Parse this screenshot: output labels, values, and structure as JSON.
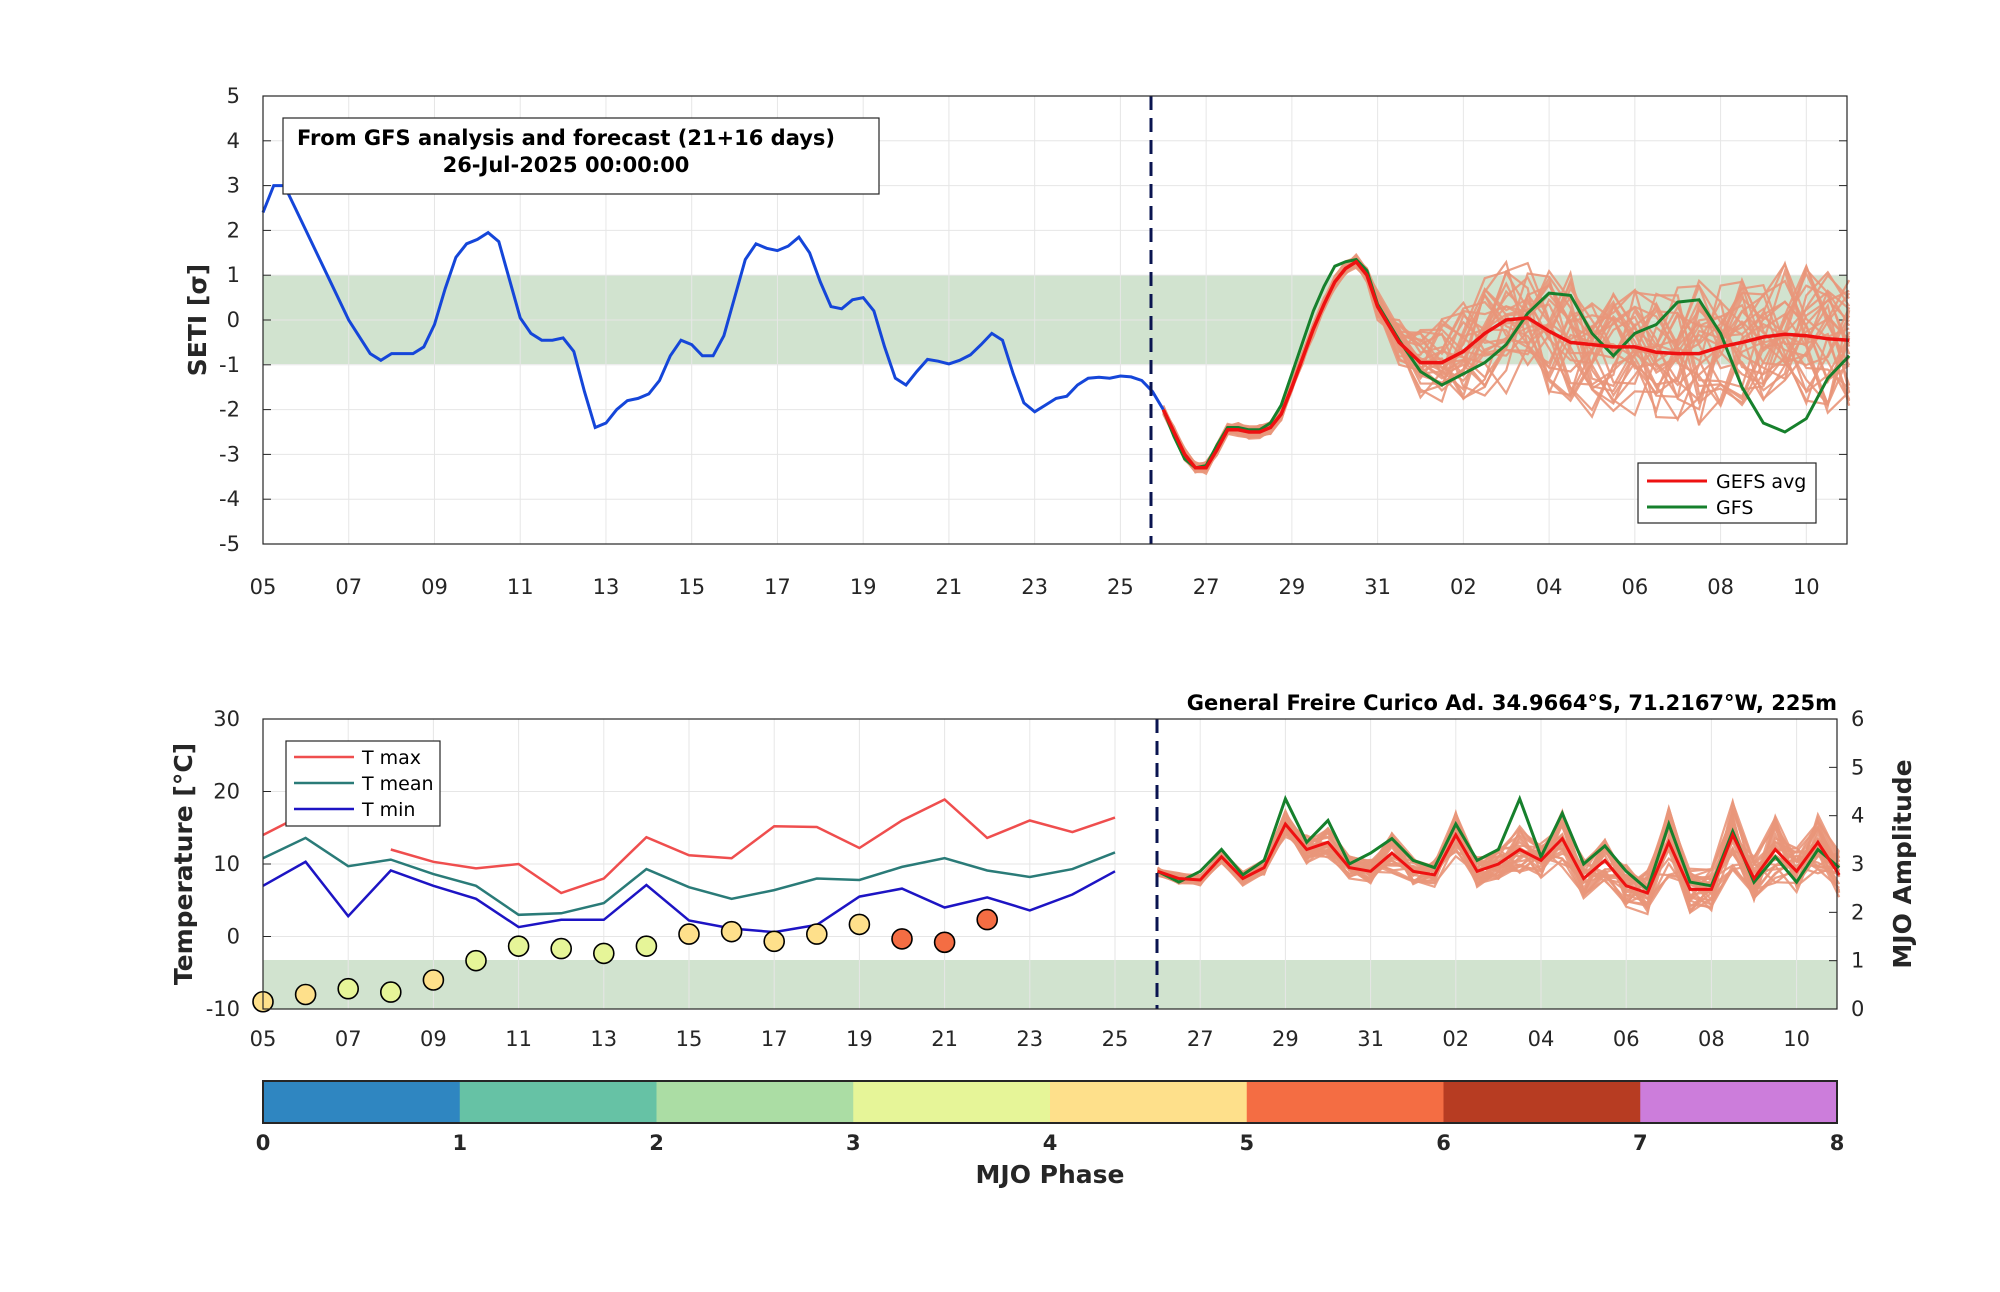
{
  "top": {
    "info_line1": "From GFS analysis and forecast (21+16 days)",
    "info_line2": "26-Jul-2025 00:00:00",
    "ylabel": "SETI [σ]",
    "ylim": [
      -5,
      5
    ],
    "yticks": [
      "-5",
      "-4",
      "-3",
      "-2",
      "-1",
      "0",
      "1",
      "2",
      "3",
      "4",
      "5"
    ],
    "xticks": [
      "05",
      "07",
      "09",
      "11",
      "13",
      "15",
      "17",
      "19",
      "21",
      "23",
      "25",
      "27",
      "29",
      "31",
      "02",
      "04",
      "06",
      "08",
      "10"
    ],
    "legend": {
      "avg": "GEFS avg",
      "gfs": "GFS"
    }
  },
  "bottom": {
    "station": "General Freire Curico Ad. 34.9664°S, 71.2167°W, 225m",
    "ylabel_left": "Temperature [°C]",
    "ylabel_right": "MJO Amplitude",
    "yticks_left": [
      "-10",
      "0",
      "10",
      "20",
      "30"
    ],
    "yticks_right": [
      "0",
      "1",
      "2",
      "3",
      "4",
      "5",
      "6"
    ],
    "xticks": [
      "05",
      "07",
      "09",
      "11",
      "13",
      "15",
      "17",
      "19",
      "21",
      "23",
      "25",
      "27",
      "29",
      "31",
      "02",
      "04",
      "06",
      "08",
      "10"
    ],
    "legend": {
      "tmax": "T max",
      "tmean": "T mean",
      "tmin": "T min"
    }
  },
  "colorbar": {
    "label": "MJO Phase",
    "ticks": [
      "0",
      "1",
      "2",
      "3",
      "4",
      "5",
      "6",
      "7",
      "8"
    ],
    "colors": [
      "#2f86c1",
      "#66c2a5",
      "#abdda4",
      "#e6f598",
      "#fee08b",
      "#f46d43",
      "#b73c22",
      "#cc7ddb"
    ]
  },
  "colors": {
    "analysis": "#1546d9",
    "gefs_avg": "#ee1111",
    "gefs_members": "#e9967a",
    "gfs": "#16802c",
    "band": "#d1e3cf",
    "tmax": "#ef4e4e",
    "tmean": "#2a7b78",
    "tmin": "#1d14c4",
    "vline": "#0a1450"
  },
  "chart_data": [
    {
      "type": "line",
      "title": "",
      "ylabel": "SETI [σ]",
      "ylim": [
        -5,
        5
      ],
      "x_unit": "day index from 05-Jul-2025",
      "band": [
        -1,
        1
      ],
      "forecast_start": 21,
      "series": [
        {
          "name": "",
          "role": "analysis",
          "x": [
            0,
            0.25,
            0.5,
            0.75,
            1,
            1.5,
            2,
            2.5,
            2.75,
            3,
            3.5,
            3.75,
            4,
            4.25,
            4.5,
            4.75,
            5,
            5.25,
            5.5,
            5.75,
            6,
            6.25,
            6.5,
            6.75,
            7,
            7.25,
            7.5,
            7.75,
            8,
            8.25,
            8.5,
            8.75,
            9,
            9.25,
            9.5,
            9.75,
            10,
            10.25,
            10.5,
            10.75,
            11,
            11.25,
            11.5,
            11.75,
            12,
            12.25,
            12.5,
            12.75,
            13,
            13.25,
            13.5,
            13.75,
            14,
            14.25,
            14.5,
            14.75,
            15,
            15.25,
            15.5,
            15.75,
            16,
            16.25,
            16.5,
            16.75,
            17,
            17.25,
            17.5,
            17.75,
            18,
            18.25,
            18.5,
            18.75,
            19,
            19.25,
            19.5,
            19.75,
            20,
            20.25,
            20.5,
            20.75,
            21
          ],
          "y": [
            2.4,
            3.0,
            3.0,
            2.5,
            2.0,
            1.0,
            0.0,
            -0.75,
            -0.9,
            -0.75,
            -0.75,
            -0.6,
            -0.1,
            0.7,
            1.4,
            1.7,
            1.8,
            1.95,
            1.75,
            0.9,
            0.05,
            -0.3,
            -0.45,
            -0.45,
            -0.4,
            -0.7,
            -1.6,
            -2.4,
            -2.3,
            -2.0,
            -1.8,
            -1.75,
            -1.65,
            -1.35,
            -0.8,
            -0.45,
            -0.55,
            -0.8,
            -0.8,
            -0.35,
            0.5,
            1.35,
            1.7,
            1.6,
            1.55,
            1.65,
            1.85,
            1.5,
            0.85,
            0.3,
            0.25,
            0.45,
            0.5,
            0.2,
            -0.6,
            -1.3,
            -1.45,
            -1.15,
            -0.88,
            -0.92,
            -0.98,
            -0.9,
            -0.78,
            -0.55,
            -0.3,
            -0.45,
            -1.2,
            -1.85,
            -2.05,
            -1.9,
            -1.75,
            -1.7,
            -1.45,
            -1.3,
            -1.28,
            -1.3,
            -1.25,
            -1.27,
            -1.35,
            -1.6,
            -2.0
          ]
        },
        {
          "name": "GEFS avg",
          "role": "avg",
          "x": [
            21,
            21.25,
            21.5,
            21.75,
            22,
            22.25,
            22.5,
            22.75,
            23,
            23.25,
            23.5,
            23.75,
            24,
            24.25,
            24.5,
            24.75,
            25,
            25.25,
            25.5,
            25.75,
            26,
            26.5,
            27,
            27.5,
            28,
            28.5,
            29,
            29.5,
            30,
            30.5,
            31,
            31.5,
            32,
            32.5,
            33,
            33.5,
            34,
            34.5,
            35,
            35.5,
            36,
            36.5,
            37
          ],
          "y": [
            -2.0,
            -2.5,
            -3.0,
            -3.3,
            -3.3,
            -2.9,
            -2.45,
            -2.45,
            -2.5,
            -2.5,
            -2.4,
            -2.1,
            -1.5,
            -0.85,
            -0.2,
            0.35,
            0.85,
            1.15,
            1.3,
            1.0,
            0.3,
            -0.5,
            -0.95,
            -0.95,
            -0.7,
            -0.3,
            0.0,
            0.05,
            -0.25,
            -0.5,
            -0.55,
            -0.6,
            -0.6,
            -0.72,
            -0.75,
            -0.75,
            -0.6,
            -0.5,
            -0.38,
            -0.32,
            -0.35,
            -0.42,
            -0.45
          ]
        },
        {
          "name": "GFS",
          "role": "gfs",
          "x": [
            21,
            21.25,
            21.5,
            21.75,
            22,
            22.25,
            22.5,
            22.75,
            23,
            23.25,
            23.5,
            23.75,
            24,
            24.25,
            24.5,
            24.75,
            25,
            25.25,
            25.5,
            25.75,
            26,
            26.5,
            27,
            27.5,
            28,
            28.5,
            29,
            29.5,
            30,
            30.5,
            31,
            31.5,
            32,
            32.5,
            33,
            33.5,
            34,
            34.5,
            35,
            35.5,
            36,
            36.5,
            37
          ],
          "y": [
            -2.0,
            -2.6,
            -3.1,
            -3.3,
            -3.25,
            -2.8,
            -2.4,
            -2.4,
            -2.45,
            -2.45,
            -2.3,
            -1.9,
            -1.2,
            -0.5,
            0.2,
            0.75,
            1.2,
            1.3,
            1.35,
            1.1,
            0.35,
            -0.45,
            -1.15,
            -1.45,
            -1.2,
            -0.95,
            -0.55,
            0.15,
            0.6,
            0.55,
            -0.3,
            -0.8,
            -0.3,
            -0.1,
            0.4,
            0.45,
            -0.3,
            -1.5,
            -2.3,
            -2.5,
            -2.2,
            -1.3,
            -0.8
          ]
        }
      ]
    },
    {
      "type": "line",
      "title": "General Freire Curico Ad. 34.9664°S, 71.2167°W, 225m",
      "ylabel": "Temperature [°C]",
      "ylim": [
        -10,
        30
      ],
      "y2label": "MJO Amplitude",
      "y2lim": [
        0,
        6
      ],
      "x_unit": "day index from 05-Jul-2025",
      "forecast_start": 21,
      "series": [
        {
          "name": "T max",
          "role": "tmax",
          "x": [
            0,
            1,
            2,
            3,
            4,
            5,
            6,
            7,
            8,
            9,
            10,
            11,
            12,
            13,
            14,
            15,
            16,
            17,
            18,
            19,
            20
          ],
          "y": [
            14,
            17,
            null,
            12,
            10.3,
            9.4,
            10,
            6,
            8,
            13.7,
            11.2,
            10.8,
            15.2,
            15.1,
            12.2,
            16,
            18.9,
            13.6,
            16,
            14.4,
            16.4
          ]
        },
        {
          "name": "T mean",
          "role": "tmean",
          "x": [
            0,
            1,
            2,
            3,
            4,
            5,
            6,
            7,
            8,
            9,
            10,
            11,
            12,
            13,
            14,
            15,
            16,
            17,
            18,
            19,
            20
          ],
          "y": [
            10.8,
            13.6,
            9.7,
            10.6,
            8.6,
            7,
            3,
            3.2,
            4.6,
            9.3,
            6.8,
            5.2,
            6.4,
            8,
            7.8,
            9.6,
            10.8,
            9.1,
            8.2,
            9.3,
            11.6
          ]
        },
        {
          "name": "T min",
          "role": "tmin",
          "x": [
            0,
            1,
            2,
            3,
            4,
            5,
            6,
            7,
            8,
            9,
            10,
            11,
            12,
            13,
            14,
            15,
            16,
            17,
            18,
            19,
            20
          ],
          "y": [
            7,
            10.3,
            2.8,
            9.1,
            7,
            5.2,
            1.3,
            2.3,
            2.3,
            7.1,
            2.2,
            1.1,
            0.6,
            1.6,
            5.5,
            6.6,
            4,
            5.4,
            3.6,
            5.8,
            9
          ]
        },
        {
          "name": "",
          "role": "mjo_points",
          "x": [
            0,
            1,
            2,
            3,
            4,
            5,
            6,
            7,
            8,
            9,
            10,
            11,
            12,
            13,
            14,
            15,
            16,
            17
          ],
          "y": [
            0.15,
            0.3,
            0.42,
            0.35,
            0.6,
            1.0,
            1.3,
            1.25,
            1.15,
            1.3,
            1.55,
            1.6,
            1.4,
            1.55,
            1.75,
            1.45,
            1.38,
            1.85
          ],
          "phase": [
            4,
            4,
            3,
            3,
            4,
            3,
            3,
            3,
            3,
            3,
            4,
            4,
            4,
            4,
            4,
            5,
            5,
            5
          ]
        },
        {
          "name": "",
          "role": "forecast_avg",
          "x": [
            21,
            21.5,
            22,
            22.5,
            23,
            23.5,
            24,
            24.5,
            25,
            25.5,
            26,
            26.5,
            27,
            27.5,
            28,
            28.5,
            29,
            29.5,
            30,
            30.5,
            31,
            31.5,
            32,
            32.5,
            33,
            33.5,
            34,
            34.5,
            35,
            35.5,
            36,
            36.5,
            37
          ],
          "y": [
            9,
            8,
            7.8,
            11,
            8,
            9.5,
            15.5,
            12,
            13,
            9.5,
            9,
            11.5,
            9,
            8.5,
            14,
            9,
            10,
            12,
            10.5,
            13.5,
            8,
            10.5,
            7,
            6,
            13,
            6.5,
            6.5,
            14,
            8,
            12,
            9,
            13,
            8.5
          ]
        },
        {
          "name": "",
          "role": "forecast_gfs",
          "x": [
            21,
            21.5,
            22,
            22.5,
            23,
            23.5,
            24,
            24.5,
            25,
            25.5,
            26,
            26.5,
            27,
            27.5,
            28,
            28.5,
            29,
            29.5,
            30,
            30.5,
            31,
            31.5,
            32,
            32.5,
            33,
            33.5,
            34,
            34.5,
            35,
            35.5,
            36,
            36.5,
            37
          ],
          "y": [
            9,
            7.5,
            9,
            12,
            8.5,
            10.5,
            19,
            13,
            16,
            10,
            11.5,
            13.5,
            10.5,
            9.5,
            15.5,
            10.5,
            12,
            19,
            11,
            17,
            10,
            12.5,
            9,
            6.5,
            15.5,
            7.5,
            7,
            14.5,
            7.5,
            11,
            7.5,
            12,
            9.5
          ]
        }
      ]
    }
  ]
}
